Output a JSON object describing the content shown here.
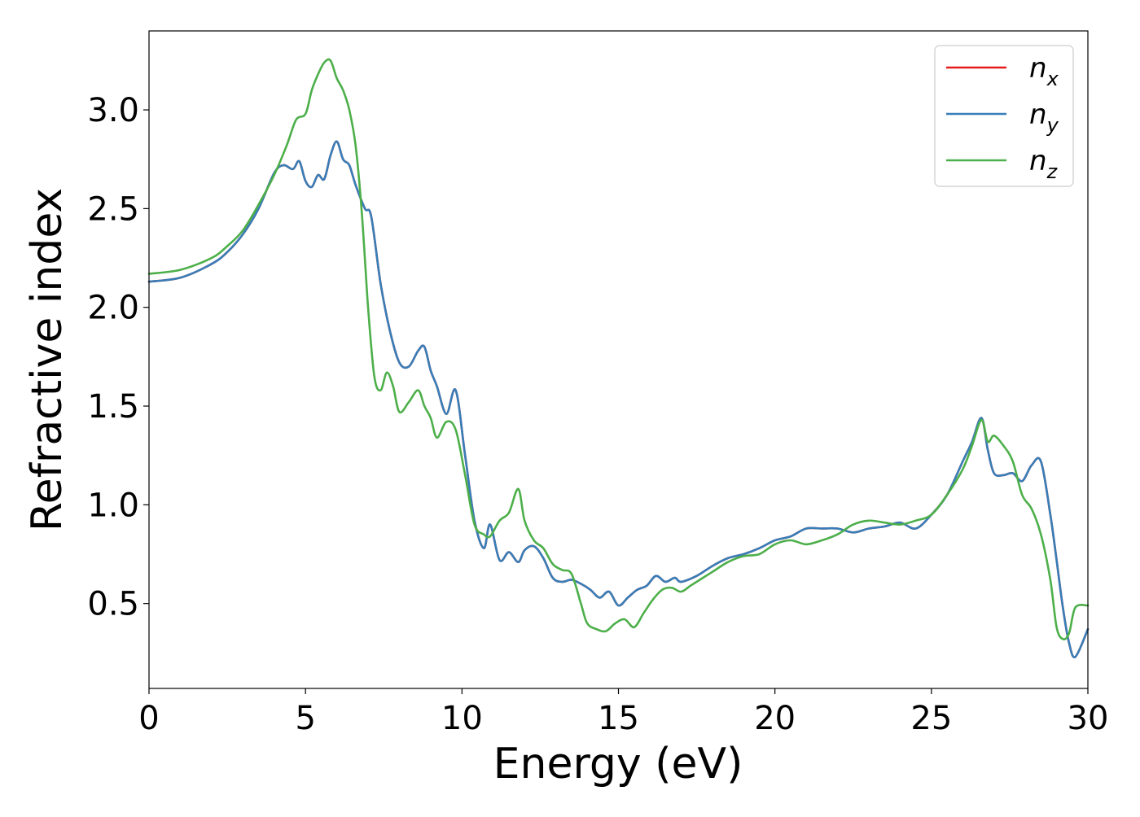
{
  "chart_data": {
    "type": "line",
    "title": "",
    "xlabel": "Energy (eV)",
    "ylabel": "Refractive index",
    "xlim": [
      0,
      30
    ],
    "ylim": [
      0.07,
      3.4
    ],
    "xticks": [
      0,
      5,
      10,
      15,
      20,
      25,
      30
    ],
    "xtick_labels": [
      "0",
      "5",
      "10",
      "15",
      "20",
      "25",
      "30"
    ],
    "yticks": [
      0.5,
      1.0,
      1.5,
      2.0,
      2.5,
      3.0
    ],
    "ytick_labels": [
      "0.5",
      "1.0",
      "1.5",
      "2.0",
      "2.5",
      "3.0"
    ],
    "grid": false,
    "legend": {
      "placement": "top-right",
      "entries": [
        {
          "base": "n",
          "sub": "x",
          "color": "#e41a1c"
        },
        {
          "base": "n",
          "sub": "y",
          "color": "#377eb8"
        },
        {
          "base": "n",
          "sub": "z",
          "color": "#4daf4a"
        }
      ]
    },
    "series": [
      {
        "name": "n_x",
        "color": "#e41a1c",
        "x": [
          0,
          1,
          2,
          2.5,
          3,
          3.5,
          4,
          4.3,
          4.6,
          4.8,
          5.0,
          5.2,
          5.4,
          5.6,
          5.8,
          6.0,
          6.2,
          6.4,
          6.6,
          6.9,
          7.1,
          7.4,
          7.7,
          8.0,
          8.3,
          8.6,
          8.8,
          9.0,
          9.2,
          9.5,
          9.8,
          10.1,
          10.4,
          10.7,
          10.9,
          11.2,
          11.5,
          11.8,
          12.0,
          12.3,
          12.6,
          12.9,
          13.2,
          13.5,
          13.8,
          14.1,
          14.4,
          14.7,
          15.0,
          15.3,
          15.6,
          15.9,
          16.2,
          16.5,
          16.8,
          17.0,
          17.5,
          18.0,
          18.5,
          19.0,
          19.5,
          20.0,
          20.5,
          21.0,
          21.5,
          22.0,
          22.5,
          23.0,
          23.5,
          24.0,
          24.5,
          25.0,
          25.5,
          26.0,
          26.3,
          26.6,
          26.8,
          27.0,
          27.3,
          27.6,
          27.9,
          28.2,
          28.5,
          28.8,
          29.0,
          29.2,
          29.4,
          29.6,
          30.0
        ],
        "y": [
          2.13,
          2.15,
          2.22,
          2.28,
          2.37,
          2.5,
          2.68,
          2.72,
          2.7,
          2.74,
          2.64,
          2.61,
          2.67,
          2.65,
          2.77,
          2.84,
          2.75,
          2.72,
          2.62,
          2.5,
          2.46,
          2.12,
          1.88,
          1.72,
          1.7,
          1.78,
          1.8,
          1.68,
          1.6,
          1.46,
          1.58,
          1.25,
          0.92,
          0.78,
          0.9,
          0.72,
          0.76,
          0.71,
          0.77,
          0.79,
          0.73,
          0.63,
          0.61,
          0.62,
          0.6,
          0.57,
          0.53,
          0.56,
          0.49,
          0.53,
          0.57,
          0.59,
          0.64,
          0.61,
          0.63,
          0.61,
          0.64,
          0.69,
          0.73,
          0.75,
          0.78,
          0.82,
          0.84,
          0.88,
          0.88,
          0.88,
          0.86,
          0.88,
          0.89,
          0.91,
          0.88,
          0.95,
          1.05,
          1.22,
          1.32,
          1.44,
          1.28,
          1.16,
          1.15,
          1.16,
          1.12,
          1.2,
          1.22,
          0.95,
          0.72,
          0.48,
          0.3,
          0.23,
          0.37
        ]
      },
      {
        "name": "n_y",
        "color": "#377eb8",
        "x": [
          0,
          1,
          2,
          2.5,
          3,
          3.5,
          4,
          4.3,
          4.6,
          4.8,
          5.0,
          5.2,
          5.4,
          5.6,
          5.8,
          6.0,
          6.2,
          6.4,
          6.6,
          6.9,
          7.1,
          7.4,
          7.7,
          8.0,
          8.3,
          8.6,
          8.8,
          9.0,
          9.2,
          9.5,
          9.8,
          10.1,
          10.4,
          10.7,
          10.9,
          11.2,
          11.5,
          11.8,
          12.0,
          12.3,
          12.6,
          12.9,
          13.2,
          13.5,
          13.8,
          14.1,
          14.4,
          14.7,
          15.0,
          15.3,
          15.6,
          15.9,
          16.2,
          16.5,
          16.8,
          17.0,
          17.5,
          18.0,
          18.5,
          19.0,
          19.5,
          20.0,
          20.5,
          21.0,
          21.5,
          22.0,
          22.5,
          23.0,
          23.5,
          24.0,
          24.5,
          25.0,
          25.5,
          26.0,
          26.3,
          26.6,
          26.8,
          27.0,
          27.3,
          27.6,
          27.9,
          28.2,
          28.5,
          28.8,
          29.0,
          29.2,
          29.4,
          29.6,
          30.0
        ],
        "y": [
          2.13,
          2.15,
          2.22,
          2.28,
          2.37,
          2.5,
          2.68,
          2.72,
          2.7,
          2.74,
          2.64,
          2.61,
          2.67,
          2.65,
          2.77,
          2.84,
          2.75,
          2.72,
          2.62,
          2.5,
          2.46,
          2.12,
          1.88,
          1.72,
          1.7,
          1.78,
          1.8,
          1.68,
          1.6,
          1.46,
          1.58,
          1.25,
          0.92,
          0.78,
          0.9,
          0.72,
          0.76,
          0.71,
          0.77,
          0.79,
          0.73,
          0.63,
          0.61,
          0.62,
          0.6,
          0.57,
          0.53,
          0.56,
          0.49,
          0.53,
          0.57,
          0.59,
          0.64,
          0.61,
          0.63,
          0.61,
          0.64,
          0.69,
          0.73,
          0.75,
          0.78,
          0.82,
          0.84,
          0.88,
          0.88,
          0.88,
          0.86,
          0.88,
          0.89,
          0.91,
          0.88,
          0.95,
          1.05,
          1.22,
          1.32,
          1.44,
          1.28,
          1.16,
          1.15,
          1.16,
          1.12,
          1.2,
          1.22,
          0.95,
          0.72,
          0.48,
          0.3,
          0.23,
          0.37
        ]
      },
      {
        "name": "n_z",
        "color": "#4daf4a",
        "x": [
          0,
          1,
          2,
          2.5,
          3,
          3.5,
          4,
          4.4,
          4.7,
          5.0,
          5.2,
          5.4,
          5.6,
          5.8,
          6.0,
          6.2,
          6.4,
          6.6,
          6.8,
          7.0,
          7.2,
          7.4,
          7.6,
          7.8,
          8.0,
          8.3,
          8.6,
          8.8,
          9.0,
          9.2,
          9.5,
          9.8,
          10.1,
          10.4,
          10.7,
          10.9,
          11.2,
          11.5,
          11.8,
          12.0,
          12.3,
          12.6,
          12.9,
          13.2,
          13.5,
          13.8,
          14.0,
          14.3,
          14.6,
          14.9,
          15.2,
          15.5,
          15.8,
          16.1,
          16.4,
          16.7,
          17.0,
          17.3,
          17.6,
          18.0,
          18.5,
          19.0,
          19.5,
          20.0,
          20.5,
          21.0,
          21.5,
          22.0,
          22.5,
          23.0,
          23.5,
          24.0,
          24.5,
          25.0,
          25.5,
          26.0,
          26.3,
          26.6,
          26.8,
          27.0,
          27.3,
          27.6,
          27.9,
          28.2,
          28.5,
          28.8,
          29.0,
          29.2,
          29.4,
          29.6,
          30.0
        ],
        "y": [
          2.17,
          2.19,
          2.25,
          2.31,
          2.39,
          2.52,
          2.67,
          2.82,
          2.95,
          2.98,
          3.1,
          3.18,
          3.24,
          3.25,
          3.16,
          3.1,
          3.0,
          2.82,
          2.48,
          2.0,
          1.65,
          1.58,
          1.67,
          1.6,
          1.47,
          1.52,
          1.58,
          1.5,
          1.44,
          1.34,
          1.42,
          1.38,
          1.15,
          0.9,
          0.85,
          0.84,
          0.92,
          0.96,
          1.08,
          0.92,
          0.82,
          0.78,
          0.7,
          0.67,
          0.65,
          0.5,
          0.4,
          0.37,
          0.36,
          0.4,
          0.42,
          0.38,
          0.45,
          0.52,
          0.57,
          0.58,
          0.56,
          0.59,
          0.62,
          0.66,
          0.71,
          0.74,
          0.75,
          0.8,
          0.82,
          0.8,
          0.82,
          0.85,
          0.9,
          0.92,
          0.91,
          0.9,
          0.92,
          0.95,
          1.05,
          1.18,
          1.3,
          1.43,
          1.32,
          1.35,
          1.3,
          1.22,
          1.05,
          0.98,
          0.85,
          0.62,
          0.38,
          0.32,
          0.35,
          0.48,
          0.49
        ]
      }
    ]
  }
}
